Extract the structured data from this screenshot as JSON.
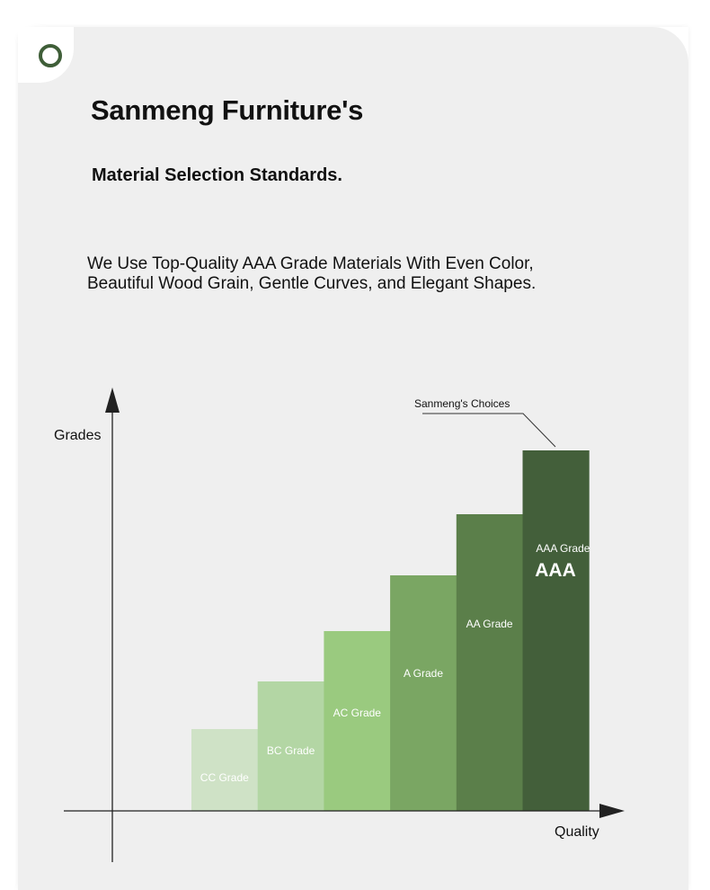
{
  "header": {
    "title": "Sanmeng Furniture's",
    "subtitle": "Material Selection Standards.",
    "description_line1": "We Use Top-Quality AAA Grade Materials With Even Color,",
    "description_line2": "Beautiful Wood Grain, Gentle Curves, and Elegant Shapes."
  },
  "chart_data": {
    "type": "bar",
    "categories": [
      "CC Grade",
      "BC Grade",
      "AC Grade",
      "A Grade",
      "AA Grade",
      "AAA Grade"
    ],
    "values": [
      1,
      2,
      3,
      4,
      5,
      6
    ],
    "xlabel": "Quality",
    "ylabel": "Grades",
    "annotation": "Sanmeng's Choices",
    "highlight_badge": "AAA",
    "grid": false,
    "colors": [
      "#cfe2c6",
      "#b3d6a4",
      "#9aca7f",
      "#7aa663",
      "#5b7f4a",
      "#435f3a"
    ],
    "ylim": [
      0,
      6
    ]
  }
}
